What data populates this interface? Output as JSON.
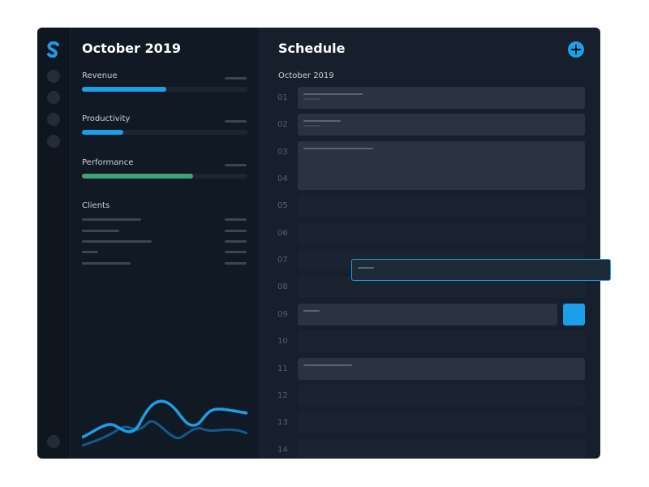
{
  "stats": {
    "title": "October 2019",
    "metrics": [
      "Revenue",
      "Productivity",
      "Performance"
    ],
    "clients_label": "Clients"
  },
  "schedule": {
    "title": "Schedule",
    "month": "October 2019",
    "hours": [
      "01",
      "02",
      "03",
      "04",
      "05",
      "06",
      "07",
      "08",
      "09",
      "10",
      "11",
      "12",
      "13",
      "14"
    ]
  }
}
